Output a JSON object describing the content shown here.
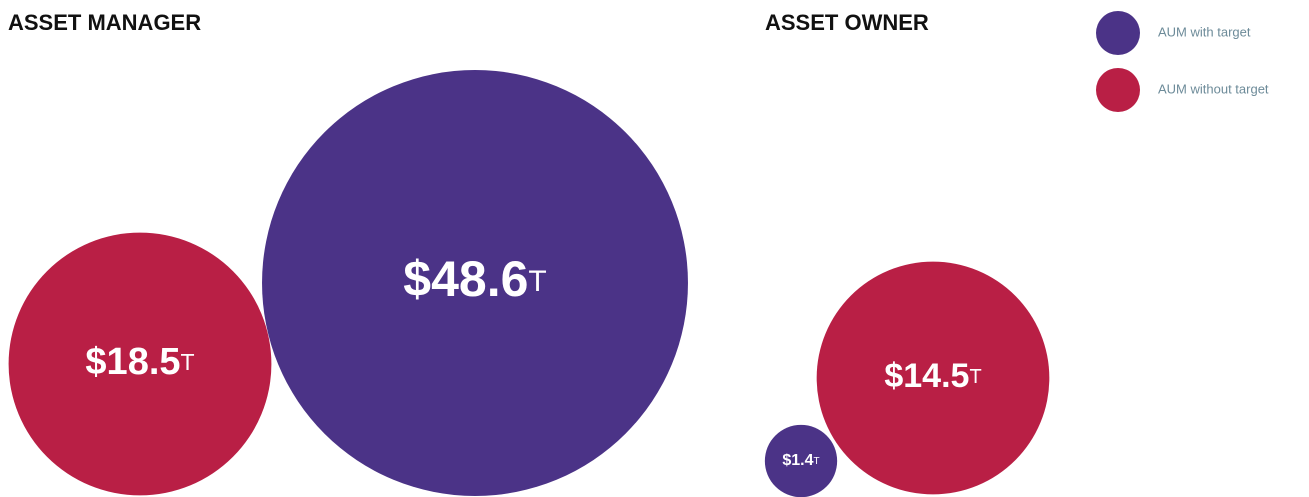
{
  "chart_data": [
    {
      "type": "bubble",
      "title": "ASSET MANAGER",
      "series": [
        {
          "name": "AUM without target",
          "color": "#b91f45",
          "values": [
            18.5
          ],
          "value_labels": [
            "$18.5T"
          ]
        },
        {
          "name": "AUM with target",
          "color": "#4b3387",
          "values": [
            48.6
          ],
          "value_labels": [
            "$48.6T"
          ]
        }
      ]
    },
    {
      "type": "bubble",
      "title": "ASSET OWNER",
      "series": [
        {
          "name": "AUM without target",
          "color": "#b91f45",
          "values": [
            14.5
          ],
          "value_labels": [
            "$14.5T"
          ]
        },
        {
          "name": "AUM with target",
          "color": "#4b3387",
          "values": [
            1.4
          ],
          "value_labels": [
            "$1.4T"
          ]
        }
      ]
    }
  ]
}
